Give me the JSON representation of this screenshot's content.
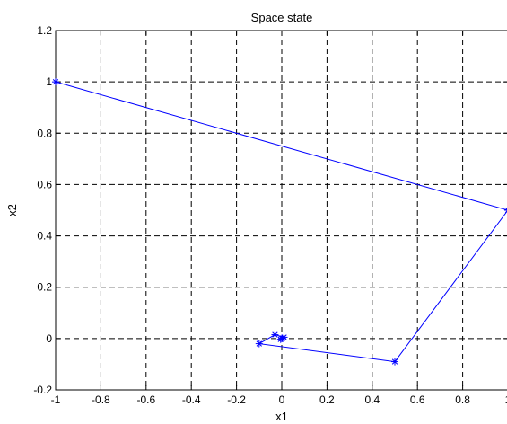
{
  "chart_data": {
    "type": "line",
    "title": "Space state",
    "xlabel": "x1",
    "ylabel": "x2",
    "xlim": [
      -1,
      1
    ],
    "ylim": [
      -0.2,
      1.2
    ],
    "grid": true,
    "grid_style": "dashed",
    "x_ticks": [
      -1,
      -0.8,
      -0.6,
      -0.4,
      -0.2,
      0,
      0.2,
      0.4,
      0.6,
      0.8,
      1
    ],
    "y_ticks": [
      -0.2,
      0,
      0.2,
      0.4,
      0.6,
      0.8,
      1,
      1.2
    ],
    "x_tick_labels": [
      "-1",
      "-0.8",
      "-0.6",
      "-0.4",
      "-0.2",
      "0",
      "0.2",
      "0.4",
      "0.6",
      "0.8",
      "1"
    ],
    "y_tick_labels": [
      "-0.2",
      "0",
      "0.2",
      "0.4",
      "0.6",
      "0.8",
      "1",
      "1.2"
    ],
    "marker": "*",
    "series": [
      {
        "color": "#0000ff",
        "points": [
          [
            -1,
            1
          ],
          [
            1,
            0.5
          ],
          [
            0.5,
            -0.09
          ],
          [
            -0.1,
            -0.02
          ],
          [
            -0.03,
            0.015
          ],
          [
            0.01,
            0.005
          ],
          [
            -0.005,
            -0.003
          ],
          [
            0.003,
            0.001
          ],
          [
            0,
            0
          ]
        ]
      }
    ]
  }
}
